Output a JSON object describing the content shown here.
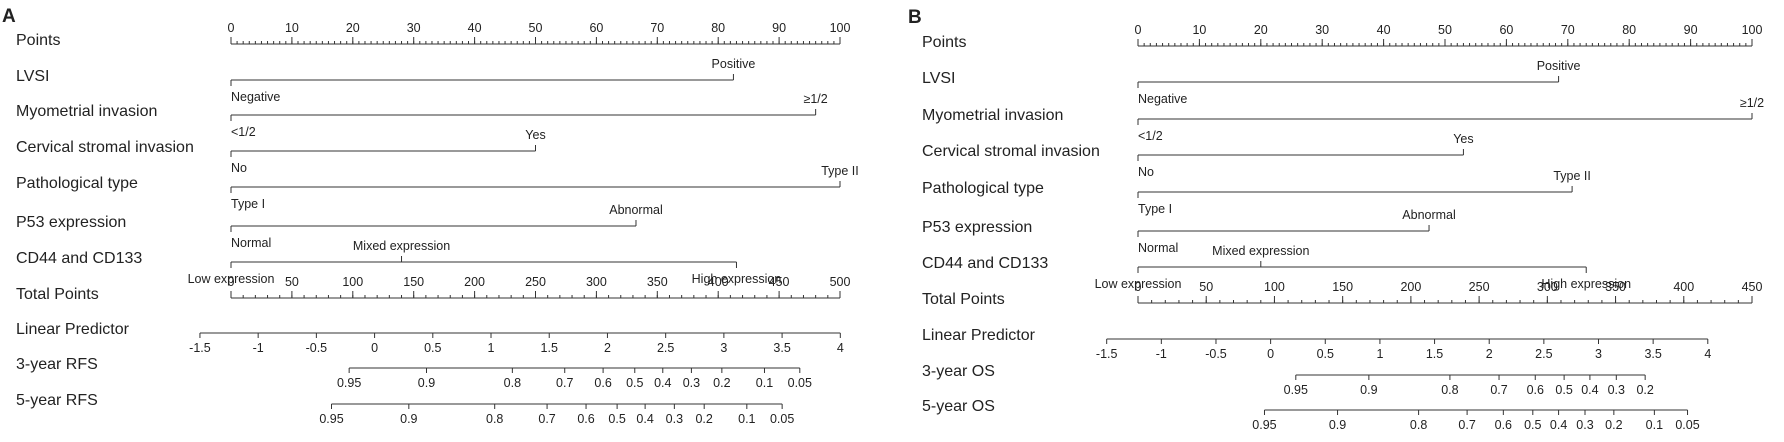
{
  "chart_data": [
    {
      "type": "nomogram",
      "panel": "A",
      "rows": [
        {
          "label": "Points",
          "kind": "scale",
          "ticks": [
            0,
            10,
            20,
            30,
            40,
            50,
            60,
            70,
            80,
            90,
            100
          ],
          "minor": 1
        },
        {
          "label": "LVSI",
          "kind": "factor",
          "min": 0,
          "max": 82.5,
          "cats": [
            {
              "text": "Negative",
              "at": 0,
              "pos": "below"
            },
            {
              "text": "Positive",
              "at": 82.5,
              "pos": "above"
            }
          ]
        },
        {
          "label": "Myometrial invasion",
          "kind": "factor",
          "min": 0,
          "max": 96,
          "cats": [
            {
              "text": "<1/2",
              "at": 0,
              "pos": "below"
            },
            {
              "text": "≥1/2",
              "at": 96,
              "pos": "above"
            }
          ]
        },
        {
          "label": "Cervical stromal invasion",
          "kind": "factor",
          "min": 0,
          "max": 50,
          "cats": [
            {
              "text": "No",
              "at": 0,
              "pos": "below"
            },
            {
              "text": "Yes",
              "at": 50,
              "pos": "above"
            }
          ]
        },
        {
          "label": "Pathological type",
          "kind": "factor",
          "min": 0,
          "max": 100,
          "cats": [
            {
              "text": "Type I",
              "at": 0,
              "pos": "below"
            },
            {
              "text": "Type II",
              "at": 100,
              "pos": "above"
            }
          ]
        },
        {
          "label": "P53 expression",
          "kind": "factor",
          "min": 0,
          "max": 66.5,
          "cats": [
            {
              "text": "Normal",
              "at": 0,
              "pos": "below"
            },
            {
              "text": "Abnormal",
              "at": 66.5,
              "pos": "above"
            }
          ]
        },
        {
          "label": "CD44 and CD133",
          "kind": "factor",
          "min": 0,
          "max": 83,
          "cats": [
            {
              "text": "Low expression",
              "at": 0,
              "pos": "below"
            },
            {
              "text": "Mixed expression",
              "at": 28,
              "pos": "above"
            },
            {
              "text": "High expression",
              "at": 83,
              "pos": "below"
            }
          ]
        },
        {
          "label": "Total Points",
          "kind": "scale",
          "vmin": 0,
          "vmax": 500,
          "ticks": [
            0,
            50,
            100,
            150,
            200,
            250,
            300,
            350,
            400,
            450,
            500
          ],
          "minor": 10
        },
        {
          "label": "Linear Predictor",
          "kind": "scale",
          "vmin": -1.5,
          "vmax": 4,
          "p0": -5.1,
          "p1": 100.05,
          "labelsBelow": true,
          "ticks": [
            -1.5,
            -1,
            -0.5,
            0,
            0.5,
            1,
            1.5,
            2,
            2.5,
            3,
            3.5,
            4
          ],
          "tickLabels": [
            "-1.5",
            "-1",
            "-0.5",
            "0",
            "0.5",
            "1",
            "1.5",
            "2",
            "2.5",
            "3",
            "3.5",
            "4"
          ]
        },
        {
          "label": "3-year RFS",
          "kind": "prob",
          "labelsBelow": true,
          "ticks": [
            {
              "text": "0.95",
              "at": 19.4
            },
            {
              "text": "0.9",
              "at": 32.1
            },
            {
              "text": "0.8",
              "at": 46.2
            },
            {
              "text": "0.7",
              "at": 54.8
            },
            {
              "text": "0.6",
              "at": 61.1
            },
            {
              "text": "0.5",
              "at": 66.3
            },
            {
              "text": "0.4",
              "at": 70.9
            },
            {
              "text": "0.3",
              "at": 75.6
            },
            {
              "text": "0.2",
              "at": 80.6
            },
            {
              "text": "0.1",
              "at": 87.6
            },
            {
              "text": "0.05",
              "at": 93.4
            }
          ]
        },
        {
          "label": "5-year RFS",
          "kind": "prob",
          "labelsBelow": true,
          "ticks": [
            {
              "text": "0.95",
              "at": 16.5
            },
            {
              "text": "0.9",
              "at": 29.2
            },
            {
              "text": "0.8",
              "at": 43.3
            },
            {
              "text": "0.7",
              "at": 51.9
            },
            {
              "text": "0.6",
              "at": 58.3
            },
            {
              "text": "0.5",
              "at": 63.4
            },
            {
              "text": "0.4",
              "at": 68.0
            },
            {
              "text": "0.3",
              "at": 72.8
            },
            {
              "text": "0.2",
              "at": 77.7
            },
            {
              "text": "0.1",
              "at": 84.7
            },
            {
              "text": "0.05",
              "at": 90.5
            }
          ]
        }
      ]
    },
    {
      "type": "nomogram",
      "panel": "B",
      "rows": [
        {
          "label": "Points",
          "kind": "scale",
          "ticks": [
            0,
            10,
            20,
            30,
            40,
            50,
            60,
            70,
            80,
            90,
            100
          ],
          "minor": 1
        },
        {
          "label": "LVSI",
          "kind": "factor",
          "min": 0,
          "max": 68.5,
          "cats": [
            {
              "text": "Negative",
              "at": 0,
              "pos": "below"
            },
            {
              "text": "Positive",
              "at": 68.5,
              "pos": "above"
            }
          ]
        },
        {
          "label": "Myometrial invasion",
          "kind": "factor",
          "min": 0,
          "max": 100,
          "cats": [
            {
              "text": "<1/2",
              "at": 0,
              "pos": "below"
            },
            {
              "text": "≥1/2",
              "at": 100,
              "pos": "above"
            }
          ]
        },
        {
          "label": "Cervical stromal invasion",
          "kind": "factor",
          "min": 0,
          "max": 53,
          "cats": [
            {
              "text": "No",
              "at": 0,
              "pos": "below"
            },
            {
              "text": "Yes",
              "at": 53,
              "pos": "above"
            }
          ]
        },
        {
          "label": "Pathological type",
          "kind": "factor",
          "min": 0,
          "max": 70.7,
          "cats": [
            {
              "text": "Type I",
              "at": 0,
              "pos": "below"
            },
            {
              "text": "Type II",
              "at": 70.7,
              "pos": "above"
            }
          ]
        },
        {
          "label": "P53 expression",
          "kind": "factor",
          "min": 0,
          "max": 47.4,
          "cats": [
            {
              "text": "Normal",
              "at": 0,
              "pos": "below"
            },
            {
              "text": "Abnormal",
              "at": 47.4,
              "pos": "above"
            }
          ]
        },
        {
          "label": "CD44 and CD133",
          "kind": "factor",
          "min": 0,
          "max": 73,
          "cats": [
            {
              "text": "Low expression",
              "at": 0,
              "pos": "below"
            },
            {
              "text": "Mixed expression",
              "at": 20,
              "pos": "above"
            },
            {
              "text": "High expression",
              "at": 73,
              "pos": "below"
            }
          ]
        },
        {
          "label": "Total Points",
          "kind": "scale",
          "vmin": 0,
          "vmax": 450,
          "ticks": [
            0,
            50,
            100,
            150,
            200,
            250,
            300,
            350,
            400,
            450
          ],
          "minor": 10
        },
        {
          "label": "Linear Predictor",
          "kind": "scale",
          "vmin": -1.5,
          "vmax": 4,
          "p0": -5.1,
          "p1": 92.8,
          "labelsBelow": true,
          "ticks": [
            -1.5,
            -1,
            -0.5,
            0,
            0.5,
            1,
            1.5,
            2,
            2.5,
            3,
            3.5,
            4
          ],
          "tickLabels": [
            "-1.5",
            "-1",
            "-0.5",
            "0",
            "0.5",
            "1",
            "1.5",
            "2",
            "2.5",
            "3",
            "3.5",
            "4"
          ]
        },
        {
          "label": "3-year OS",
          "kind": "prob",
          "labelsBelow": true,
          "ticks": [
            {
              "text": "0.95",
              "at": 25.7
            },
            {
              "text": "0.9",
              "at": 37.6
            },
            {
              "text": "0.8",
              "at": 50.8
            },
            {
              "text": "0.7",
              "at": 58.8
            },
            {
              "text": "0.6",
              "at": 64.7
            },
            {
              "text": "0.5",
              "at": 69.4
            },
            {
              "text": "0.4",
              "at": 73.6
            },
            {
              "text": "0.3",
              "at": 77.9
            },
            {
              "text": "0.2",
              "at": 82.6
            }
          ]
        },
        {
          "label": "5-year OS",
          "kind": "prob",
          "labelsBelow": true,
          "ticks": [
            {
              "text": "0.95",
              "at": 20.6
            },
            {
              "text": "0.9",
              "at": 32.5
            },
            {
              "text": "0.8",
              "at": 45.7
            },
            {
              "text": "0.7",
              "at": 53.6
            },
            {
              "text": "0.6",
              "at": 59.5
            },
            {
              "text": "0.5",
              "at": 64.3
            },
            {
              "text": "0.4",
              "at": 68.5
            },
            {
              "text": "0.3",
              "at": 72.8
            },
            {
              "text": "0.2",
              "at": 77.5
            },
            {
              "text": "0.1",
              "at": 84.1
            },
            {
              "text": "0.05",
              "at": 89.5
            }
          ]
        }
      ]
    }
  ]
}
